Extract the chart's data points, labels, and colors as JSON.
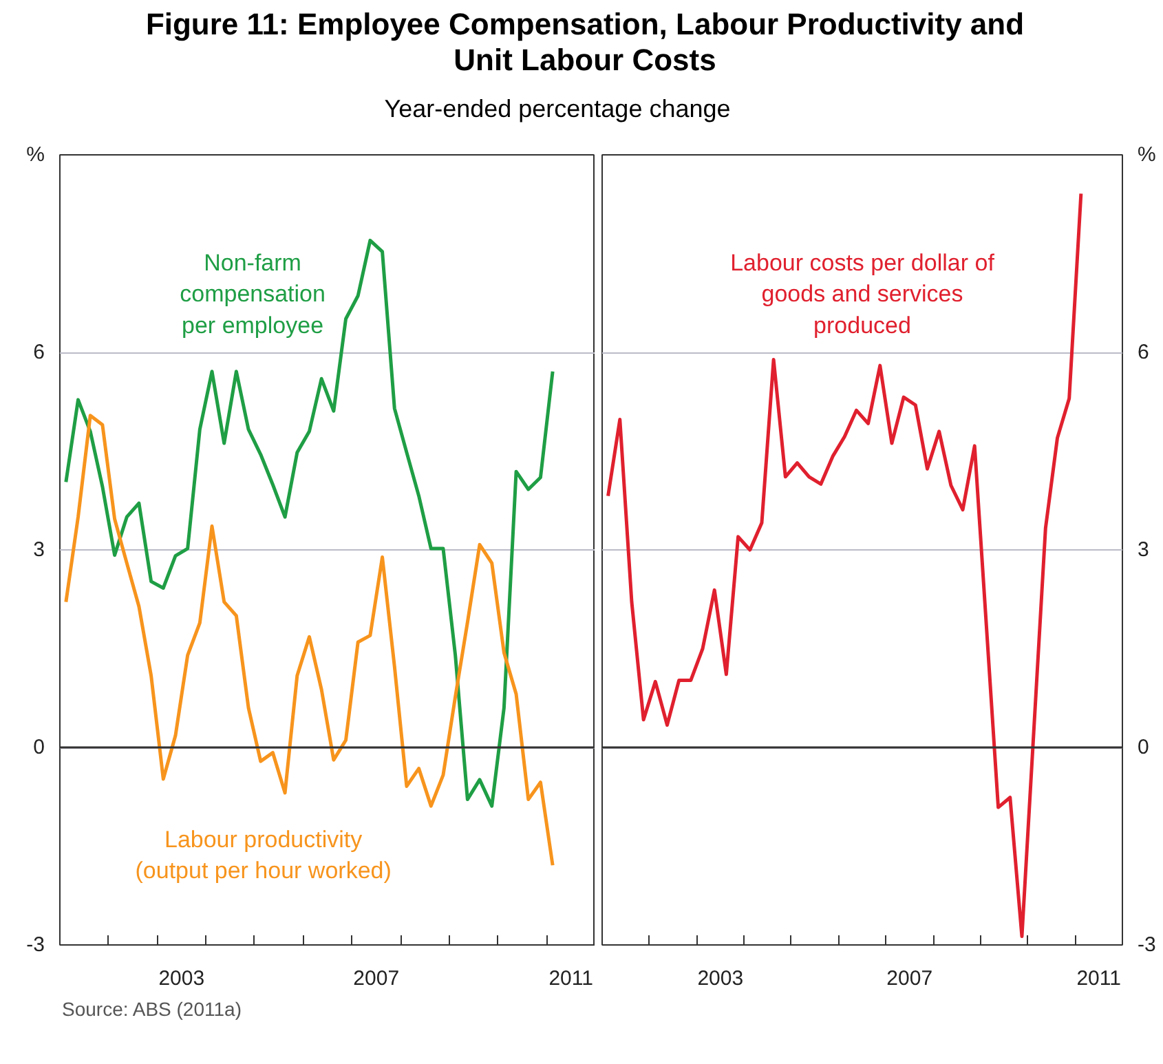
{
  "chart_data": [
    {
      "type": "line",
      "title": "Figure 11: Employee Compensation, Labour Productivity and Unit Labour Costs",
      "subtitle": "Year-ended percentage change",
      "ylabel": "%",
      "annotations": [
        "Source: ABS (2011a)"
      ],
      "x": [
        2001.125,
        2001.375,
        2001.625,
        2001.875,
        2002.125,
        2002.375,
        2002.625,
        2002.875,
        2003.125,
        2003.375,
        2003.625,
        2003.875,
        2004.125,
        2004.375,
        2004.625,
        2004.875,
        2005.125,
        2005.375,
        2005.625,
        2005.875,
        2006.125,
        2006.375,
        2006.625,
        2006.875,
        2007.125,
        2007.375,
        2007.625,
        2007.875,
        2008.125,
        2008.375,
        2008.625,
        2008.875,
        2009.125,
        2009.375,
        2009.625,
        2009.875,
        2010.125,
        2010.375,
        2010.625,
        2010.875,
        2011.125
      ],
      "xlim": [
        2001,
        2012
      ],
      "xticks": [
        {
          "value": 2002,
          "label": null
        },
        {
          "value": 2003,
          "label": null
        },
        {
          "value": 2004,
          "label": null
        },
        {
          "value": 2005,
          "label": null
        },
        {
          "value": 2006,
          "label": null
        },
        {
          "value": 2007,
          "label": null
        },
        {
          "value": 2008,
          "label": null
        },
        {
          "value": 2009,
          "label": null
        },
        {
          "value": 2010,
          "label": null
        },
        {
          "value": 2011,
          "label": null
        },
        {
          "value": 2003.5,
          "label": "2003"
        },
        {
          "value": 2007.5,
          "label": "2007"
        },
        {
          "value": 2011.5,
          "label": "2011"
        }
      ],
      "ylim": [
        -3,
        9
      ],
      "yticks": [
        -3,
        0,
        3,
        6
      ],
      "grid": "y",
      "ref_lines": [
        {
          "axis": "y",
          "value": 0,
          "color": "#333333"
        }
      ],
      "series": [
        {
          "name": "Non-farm\ncompensation\nper employee",
          "color": "#1f9e45",
          "values": [
            4.03,
            5.28,
            4.8,
            3.96,
            2.92,
            3.5,
            3.71,
            2.52,
            2.42,
            2.91,
            3.02,
            4.83,
            5.71,
            4.62,
            5.71,
            4.83,
            4.45,
            3.99,
            3.5,
            4.48,
            4.8,
            5.6,
            5.11,
            6.51,
            6.86,
            7.7,
            7.53,
            5.15,
            4.48,
            3.82,
            3.02,
            3.02,
            1.4,
            -0.79,
            -0.49,
            -0.89,
            0.6,
            4.19,
            3.92,
            4.1,
            5.71
          ]
        },
        {
          "name": "Labour productivity\n(output per hour worked)",
          "color": "#f7941d",
          "values": [
            2.21,
            3.5,
            5.04,
            4.9,
            3.47,
            2.8,
            2.14,
            1.09,
            -0.48,
            0.18,
            1.4,
            1.89,
            3.36,
            2.21,
            2.0,
            0.6,
            -0.21,
            -0.08,
            -0.69,
            1.09,
            1.68,
            0.88,
            -0.19,
            0.11,
            1.6,
            1.7,
            2.89,
            1.23,
            -0.59,
            -0.32,
            -0.89,
            -0.42,
            0.77,
            1.9,
            3.08,
            2.8,
            1.44,
            0.81,
            -0.79,
            -0.53,
            -1.79
          ]
        }
      ]
    },
    {
      "type": "line",
      "ylabel": "%",
      "x": [
        2001.125,
        2001.375,
        2001.625,
        2001.875,
        2002.125,
        2002.375,
        2002.625,
        2002.875,
        2003.125,
        2003.375,
        2003.625,
        2003.875,
        2004.125,
        2004.375,
        2004.625,
        2004.875,
        2005.125,
        2005.375,
        2005.625,
        2005.875,
        2006.125,
        2006.375,
        2006.625,
        2006.875,
        2007.125,
        2007.375,
        2007.625,
        2007.875,
        2008.125,
        2008.375,
        2008.625,
        2008.875,
        2009.125,
        2009.375,
        2009.625,
        2009.875,
        2010.125,
        2010.375,
        2010.625,
        2010.875,
        2011.125
      ],
      "xlim": [
        2001,
        2012
      ],
      "xticks": [
        {
          "value": 2002,
          "label": null
        },
        {
          "value": 2003,
          "label": null
        },
        {
          "value": 2004,
          "label": null
        },
        {
          "value": 2005,
          "label": null
        },
        {
          "value": 2006,
          "label": null
        },
        {
          "value": 2007,
          "label": null
        },
        {
          "value": 2008,
          "label": null
        },
        {
          "value": 2009,
          "label": null
        },
        {
          "value": 2010,
          "label": null
        },
        {
          "value": 2011,
          "label": null
        },
        {
          "value": 2003.5,
          "label": "2003"
        },
        {
          "value": 2007.5,
          "label": "2007"
        },
        {
          "value": 2011.5,
          "label": "2011"
        }
      ],
      "ylim": [
        -3,
        9
      ],
      "yticks": [
        -3,
        0,
        3,
        6
      ],
      "grid": "y",
      "ref_lines": [
        {
          "axis": "y",
          "value": 0,
          "color": "#333333"
        }
      ],
      "series": [
        {
          "name": "Labour costs per dollar of\ngoods and services\nproduced",
          "color": "#e0202e",
          "values": [
            3.82,
            4.98,
            2.21,
            0.42,
            1.0,
            0.34,
            1.02,
            1.02,
            1.5,
            2.39,
            1.11,
            3.2,
            3.0,
            3.41,
            5.89,
            4.11,
            4.32,
            4.11,
            4.0,
            4.42,
            4.72,
            5.12,
            4.92,
            5.8,
            4.62,
            5.32,
            5.2,
            4.23,
            4.8,
            3.98,
            3.61,
            4.58,
            1.84,
            -0.91,
            -0.76,
            -2.87,
            0.23,
            3.33,
            4.7,
            5.3,
            8.41
          ]
        }
      ]
    }
  ]
}
